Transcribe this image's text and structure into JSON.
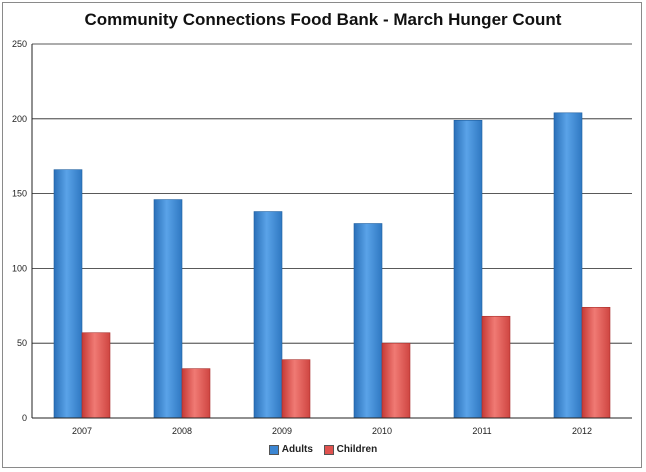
{
  "chart_data": {
    "type": "bar",
    "title": "Community Connections Food Bank - March Hunger Count",
    "xlabel": "",
    "ylabel": "",
    "categories": [
      "2007",
      "2008",
      "2009",
      "2010",
      "2011",
      "2012"
    ],
    "series": [
      {
        "name": "Adults",
        "values": [
          166,
          146,
          138,
          130,
          199,
          204
        ],
        "color": "#3c86d2"
      },
      {
        "name": "Children",
        "values": [
          57,
          33,
          39,
          50,
          68,
          74
        ],
        "color": "#e0524e"
      }
    ],
    "ylim": [
      0,
      250
    ],
    "yticks": [
      "0",
      "50",
      "100",
      "150",
      "200",
      "250"
    ],
    "grid": true,
    "legend": "bottom"
  }
}
